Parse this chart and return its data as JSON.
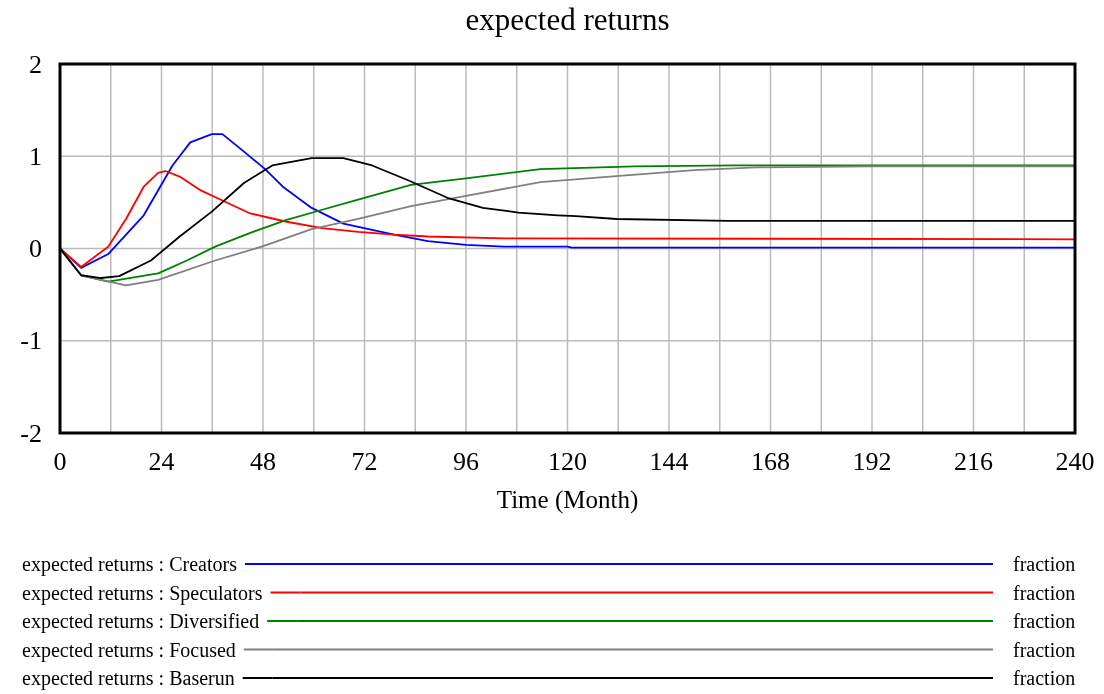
{
  "chart_data": {
    "type": "line",
    "title": "expected returns",
    "xlabel": "Time (Month)",
    "xlim": [
      0,
      240
    ],
    "ylim": [
      -2,
      2
    ],
    "xticks": [
      0,
      {
        "value": 12,
        "label": null
      },
      24,
      {
        "value": 36,
        "label": null
      },
      48,
      {
        "value": 60,
        "label": null
      },
      72,
      {
        "value": 84,
        "label": null
      },
      96,
      {
        "value": 108,
        "label": null
      },
      120,
      {
        "value": 132,
        "label": null
      },
      144,
      {
        "value": 156,
        "label": null
      },
      168,
      {
        "value": 180,
        "label": null
      },
      192,
      {
        "value": 204,
        "label": null
      },
      216,
      {
        "value": 228,
        "label": null
      },
      240
    ],
    "yticks": [
      -2,
      -1,
      0,
      1,
      2
    ],
    "grid": true,
    "legend": "bottom",
    "line_style": "solid",
    "annotations": [
      "fraction",
      "fraction",
      "fraction",
      "fraction",
      "fraction"
    ],
    "series": [
      {
        "name": "expected returns : Creators",
        "color": "#0000ff",
        "x": [
          0,
          5,
          11.4,
          19.8,
          26.6,
          30.8,
          35.9,
          38.4,
          43.5,
          48.5,
          52.7,
          59.5,
          67,
          79,
          87,
          96,
          105,
          120,
          121,
          240
        ],
        "values": [
          0,
          -0.21,
          -0.06,
          0.36,
          0.9,
          1.15,
          1.24,
          1.24,
          1.05,
          0.86,
          0.67,
          0.44,
          0.27,
          0.15,
          0.08,
          0.04,
          0.02,
          0.02,
          0.01,
          0.01
        ]
      },
      {
        "name": "expected returns : Speculators",
        "color": "#ff0000",
        "x": [
          0,
          5,
          11.4,
          15.6,
          19.8,
          23.2,
          24.9,
          28.3,
          33.3,
          38.4,
          45,
          53.6,
          62,
          70.5,
          79,
          87,
          105,
          240
        ],
        "values": [
          0,
          -0.2,
          0.02,
          0.32,
          0.67,
          0.82,
          0.84,
          0.78,
          0.63,
          0.52,
          0.38,
          0.29,
          0.22,
          0.18,
          0.15,
          0.13,
          0.11,
          0.1
        ]
      },
      {
        "name": "expected returns : Diversified",
        "color": "#008000",
        "x": [
          0,
          5,
          11.4,
          23.2,
          30,
          36.7,
          45,
          53.6,
          62,
          70.5,
          83,
          96,
          113.6,
          135.8,
          160,
          240
        ],
        "values": [
          0,
          -0.29,
          -0.36,
          -0.27,
          -0.13,
          0.02,
          0.17,
          0.31,
          0.42,
          0.53,
          0.69,
          0.76,
          0.86,
          0.89,
          0.9,
          0.9
        ]
      },
      {
        "name": "expected returns : Focused",
        "color": "#808080",
        "x": [
          0,
          5,
          15.6,
          23.2,
          36.7,
          47.7,
          59.5,
          70.5,
          83,
          96,
          113.6,
          133,
          150,
          164.7,
          192,
          240
        ],
        "values": [
          0,
          -0.29,
          -0.4,
          -0.34,
          -0.13,
          0.02,
          0.21,
          0.32,
          0.46,
          0.57,
          0.72,
          0.79,
          0.85,
          0.88,
          0.89,
          0.89
        ]
      },
      {
        "name": "expected returns : Baserun",
        "color": "#000000",
        "x": [
          0,
          5,
          9.7,
          14,
          21.5,
          28.3,
          35.9,
          43.5,
          50.2,
          59.5,
          67,
          73.8,
          82.3,
          91.6,
          100,
          108.4,
          117.7,
          122,
          131.6,
          158,
          240
        ],
        "values": [
          0,
          -0.29,
          -0.32,
          -0.3,
          -0.13,
          0.13,
          0.4,
          0.71,
          0.9,
          0.98,
          0.98,
          0.9,
          0.74,
          0.55,
          0.44,
          0.39,
          0.36,
          0.35,
          0.32,
          0.3,
          0.3
        ]
      }
    ]
  }
}
